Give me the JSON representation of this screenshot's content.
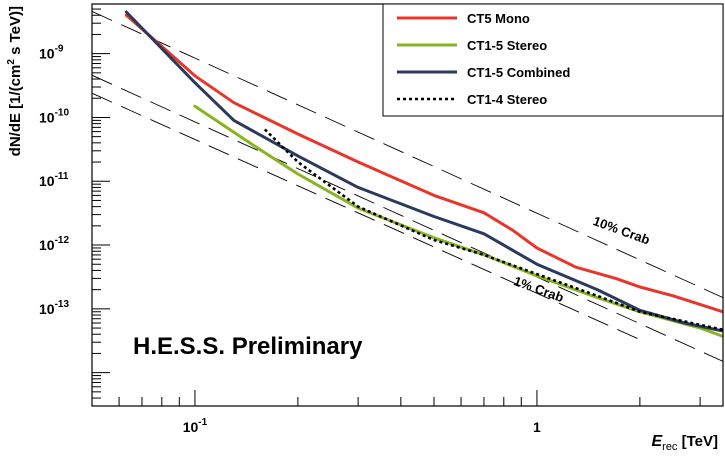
{
  "chart_data": {
    "type": "line",
    "title": "",
    "xlabel": {
      "main": "E",
      "sub": "rec",
      "unit": " [TeV]"
    },
    "ylabel": {
      "pre": "dN/dE [1/(cm",
      "sup": "2",
      "post": " s TeV)]"
    },
    "x_scale": "log",
    "y_scale": "log",
    "xlim": [
      0.05,
      3.5
    ],
    "ylim": [
      3e-15,
      6e-09
    ],
    "x_ticks": [
      {
        "value": 0.1,
        "base": "10",
        "exp": "-1"
      },
      {
        "value": 1,
        "base": "1",
        "exp": ""
      }
    ],
    "y_ticks": [
      {
        "value": 1e-09,
        "base": "10",
        "exp": "-9"
      },
      {
        "value": 1e-10,
        "base": "10",
        "exp": "-10"
      },
      {
        "value": 1e-11,
        "base": "10",
        "exp": "-11"
      },
      {
        "value": 1e-12,
        "base": "10",
        "exp": "-12"
      },
      {
        "value": 1e-13,
        "base": "10",
        "exp": "-13"
      }
    ],
    "grid": false,
    "legend_position": "top-right",
    "series": [
      {
        "name": "CT5 Mono",
        "color": "#e8362a",
        "dash": "solid",
        "x": [
          0.063,
          0.08,
          0.1,
          0.13,
          0.2,
          0.3,
          0.5,
          0.7,
          0.85,
          1.0,
          1.3,
          1.7,
          2.0,
          2.5,
          3.5
        ],
        "y": [
          4e-09,
          1.3e-09,
          4.5e-10,
          1.7e-10,
          5.5e-11,
          2e-11,
          6e-12,
          3.2e-12,
          1.7e-12,
          9e-13,
          4.5e-13,
          3e-13,
          2.2e-13,
          1.6e-13,
          9e-14
        ]
      },
      {
        "name": "CT1-5 Stereo",
        "color": "#8ab31f",
        "dash": "solid",
        "x": [
          0.1,
          0.15,
          0.2,
          0.3,
          0.5,
          0.7,
          1.0,
          1.5,
          2.0,
          3.0,
          3.5
        ],
        "y": [
          1.5e-10,
          3.5e-11,
          1.3e-11,
          3.8e-12,
          1.3e-12,
          7e-13,
          3.3e-13,
          1.5e-13,
          9e-14,
          5e-14,
          3.7e-14
        ]
      },
      {
        "name": "CT1-5 Combined",
        "color": "#2a3a5c",
        "dash": "solid",
        "x": [
          0.063,
          0.08,
          0.1,
          0.13,
          0.2,
          0.3,
          0.5,
          0.7,
          1.0,
          1.5,
          2.0,
          2.7,
          3.5
        ],
        "y": [
          4.5e-09,
          1.2e-09,
          3.5e-10,
          9e-11,
          2.5e-11,
          8e-12,
          2.8e-12,
          1.5e-12,
          5e-13,
          2e-13,
          9.5e-14,
          6e-14,
          4.5e-14
        ]
      },
      {
        "name": "CT1-4 Stereo",
        "color": "#000000",
        "dash": "dotted",
        "x": [
          0.16,
          0.2,
          0.3,
          0.5,
          0.7,
          1.0,
          1.5,
          2.0,
          3.5
        ],
        "y": [
          6.5e-11,
          2e-11,
          4e-12,
          1.2e-12,
          7e-13,
          3.5e-13,
          1.6e-13,
          9e-14,
          4.7e-14
        ]
      }
    ],
    "reference_lines": [
      {
        "label": "10% Crab",
        "color": "#000000",
        "dash": "long-dash",
        "x": [
          0.05,
          3.5
        ],
        "y": [
          4.6e-09,
          1.5e-13
        ],
        "label_x": 1.45,
        "label_y": 2.1e-12,
        "label_angle": 20
      },
      {
        "label": "1% Crab",
        "color": "#000000",
        "dash": "long-dash",
        "x": [
          0.05,
          3.5
        ],
        "y": [
          4.6e-10,
          1.5e-14
        ],
        "label_x": 0.85,
        "label_y": 2.4e-13,
        "label_angle": 20
      },
      {
        "label": "",
        "color": "#000000",
        "dash": "long-dash",
        "x": [
          0.05,
          2.0
        ],
        "y": [
          2.4e-10,
          3.3e-14
        ],
        "label_x": null,
        "label_y": null,
        "label_angle": 0
      }
    ],
    "annotations": [
      {
        "text": "H.E.S.S. Preliminary"
      }
    ]
  }
}
